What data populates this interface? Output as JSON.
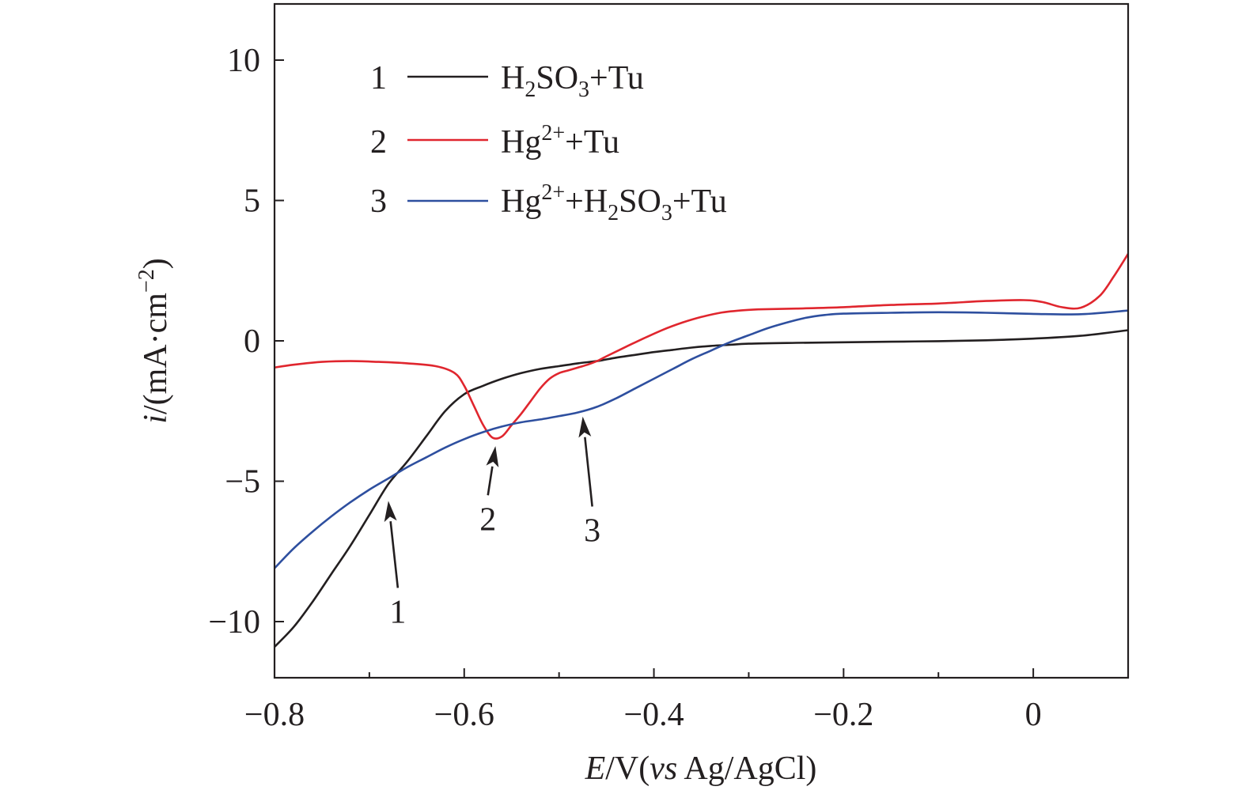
{
  "chart_data": {
    "type": "line",
    "title": "",
    "xlabel": {
      "italic": "E",
      "unit_prefix": "/V(",
      "italic_vs": "vs",
      "unit_suffix": " Ag/AgCl)"
    },
    "ylabel": {
      "italic": "i",
      "unit_prefix": "/(mA·cm",
      "superscript": "−2",
      "unit_suffix": ")"
    },
    "xlim": [
      -0.8,
      0.1
    ],
    "ylim": [
      -12,
      12
    ],
    "xticks": [
      -0.8,
      -0.6,
      -0.4,
      -0.2,
      0
    ],
    "xtick_labels": [
      "−0.8",
      "−0.6",
      "−0.4",
      "−0.2",
      "0"
    ],
    "yticks": [
      -10,
      -5,
      0,
      5,
      10
    ],
    "ytick_labels": [
      "−10",
      "−5",
      "0",
      "5",
      "10"
    ],
    "series": [
      {
        "id": "1",
        "number": "1",
        "legend": {
          "pre": "H",
          "sub1": "2",
          "mid": "SO",
          "sub2": "3",
          "post": "+Tu"
        },
        "color": "#231f20",
        "x": [
          -0.8,
          -0.78,
          -0.76,
          -0.74,
          -0.72,
          -0.7,
          -0.68,
          -0.66,
          -0.64,
          -0.62,
          -0.6,
          -0.58,
          -0.56,
          -0.54,
          -0.52,
          -0.5,
          -0.48,
          -0.46,
          -0.44,
          -0.42,
          -0.4,
          -0.38,
          -0.36,
          -0.34,
          -0.32,
          -0.3,
          -0.25,
          -0.2,
          -0.15,
          -0.1,
          -0.05,
          0.0,
          0.05,
          0.1
        ],
        "y": [
          -10.9,
          -10.2,
          -9.3,
          -8.3,
          -7.3,
          -6.2,
          -5.1,
          -4.3,
          -3.4,
          -2.5,
          -1.9,
          -1.6,
          -1.35,
          -1.15,
          -1.0,
          -0.9,
          -0.8,
          -0.72,
          -0.6,
          -0.5,
          -0.4,
          -0.32,
          -0.24,
          -0.18,
          -0.14,
          -0.1,
          -0.07,
          -0.05,
          -0.03,
          -0.01,
          0.02,
          0.08,
          0.18,
          0.38
        ]
      },
      {
        "id": "2",
        "number": "2",
        "legend": {
          "pre": "Hg",
          "sup": "2+",
          "post": "+Tu"
        },
        "color": "#e0262e",
        "x": [
          -0.8,
          -0.78,
          -0.75,
          -0.72,
          -0.69,
          -0.66,
          -0.63,
          -0.61,
          -0.6,
          -0.59,
          -0.58,
          -0.57,
          -0.56,
          -0.55,
          -0.54,
          -0.53,
          -0.52,
          -0.51,
          -0.5,
          -0.49,
          -0.48,
          -0.47,
          -0.46,
          -0.45,
          -0.43,
          -0.41,
          -0.39,
          -0.37,
          -0.35,
          -0.33,
          -0.31,
          -0.29,
          -0.25,
          -0.2,
          -0.15,
          -0.1,
          -0.05,
          -0.01,
          0.01,
          0.03,
          0.05,
          0.07,
          0.085,
          0.1
        ],
        "y": [
          -0.95,
          -0.85,
          -0.75,
          -0.72,
          -0.75,
          -0.8,
          -0.9,
          -1.15,
          -1.6,
          -2.3,
          -3.0,
          -3.45,
          -3.4,
          -3.0,
          -2.6,
          -2.15,
          -1.7,
          -1.35,
          -1.15,
          -1.05,
          -0.95,
          -0.85,
          -0.72,
          -0.55,
          -0.22,
          0.1,
          0.4,
          0.65,
          0.85,
          1.0,
          1.08,
          1.12,
          1.15,
          1.2,
          1.28,
          1.33,
          1.42,
          1.45,
          1.38,
          1.2,
          1.18,
          1.6,
          2.3,
          3.1
        ]
      },
      {
        "id": "3",
        "number": "3",
        "legend": {
          "pre": "Hg",
          "sup": "2+",
          "mid": "+H",
          "sub1": "2",
          "mid2": "SO",
          "sub2": "3",
          "post": "+Tu"
        },
        "color": "#2e4f9f",
        "x": [
          -0.8,
          -0.78,
          -0.76,
          -0.74,
          -0.72,
          -0.7,
          -0.68,
          -0.66,
          -0.64,
          -0.62,
          -0.6,
          -0.58,
          -0.56,
          -0.54,
          -0.52,
          -0.5,
          -0.48,
          -0.46,
          -0.44,
          -0.42,
          -0.4,
          -0.38,
          -0.36,
          -0.34,
          -0.32,
          -0.3,
          -0.28,
          -0.26,
          -0.24,
          -0.22,
          -0.2,
          -0.15,
          -0.1,
          -0.05,
          0.0,
          0.05,
          0.1
        ],
        "y": [
          -8.1,
          -7.4,
          -6.8,
          -6.25,
          -5.75,
          -5.3,
          -4.9,
          -4.5,
          -4.15,
          -3.8,
          -3.5,
          -3.25,
          -3.05,
          -2.9,
          -2.8,
          -2.68,
          -2.55,
          -2.35,
          -2.05,
          -1.7,
          -1.35,
          -1.0,
          -0.65,
          -0.35,
          -0.05,
          0.2,
          0.45,
          0.65,
          0.82,
          0.92,
          0.97,
          1.0,
          1.02,
          1.0,
          0.96,
          0.95,
          1.08
        ]
      }
    ],
    "annotations": [
      {
        "label": "1",
        "tip": [
          -0.68,
          -5.7
        ],
        "tail": [
          -0.67,
          -8.8
        ]
      },
      {
        "label": "2",
        "tip": [
          -0.567,
          -3.75
        ],
        "tail": [
          -0.575,
          -5.5
        ]
      },
      {
        "label": "3",
        "tip": [
          -0.475,
          -2.7
        ],
        "tail": [
          -0.465,
          -5.9
        ]
      }
    ]
  }
}
